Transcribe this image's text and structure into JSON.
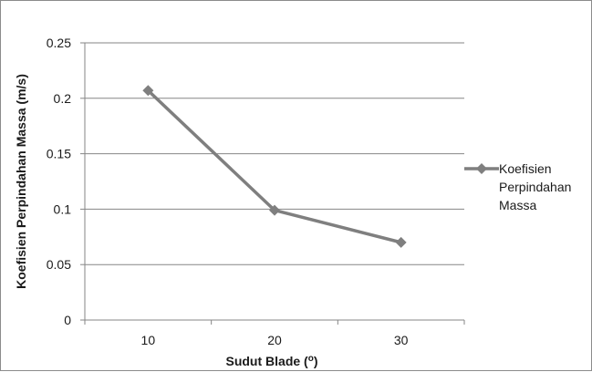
{
  "chart_data": {
    "type": "line",
    "categories": [
      "10",
      "20",
      "30"
    ],
    "series": [
      {
        "name": "Koefisien Perpindahan Massa",
        "values": [
          0.207,
          0.099,
          0.07
        ],
        "color": "#7f7f7f",
        "marker": "diamond"
      }
    ],
    "xlabel": "Sudut Blade (o)",
    "ylabel": "Koefisien Perpindahan Massa (m/s)",
    "ylim": [
      0,
      0.25
    ],
    "yticks": [
      "0",
      "0.05",
      "0.1",
      "0.15",
      "0.2",
      "0.25"
    ],
    "grid": true,
    "legend": "right",
    "legend_lines": [
      "Koefisien",
      "Perpindahan",
      "Massa"
    ]
  }
}
